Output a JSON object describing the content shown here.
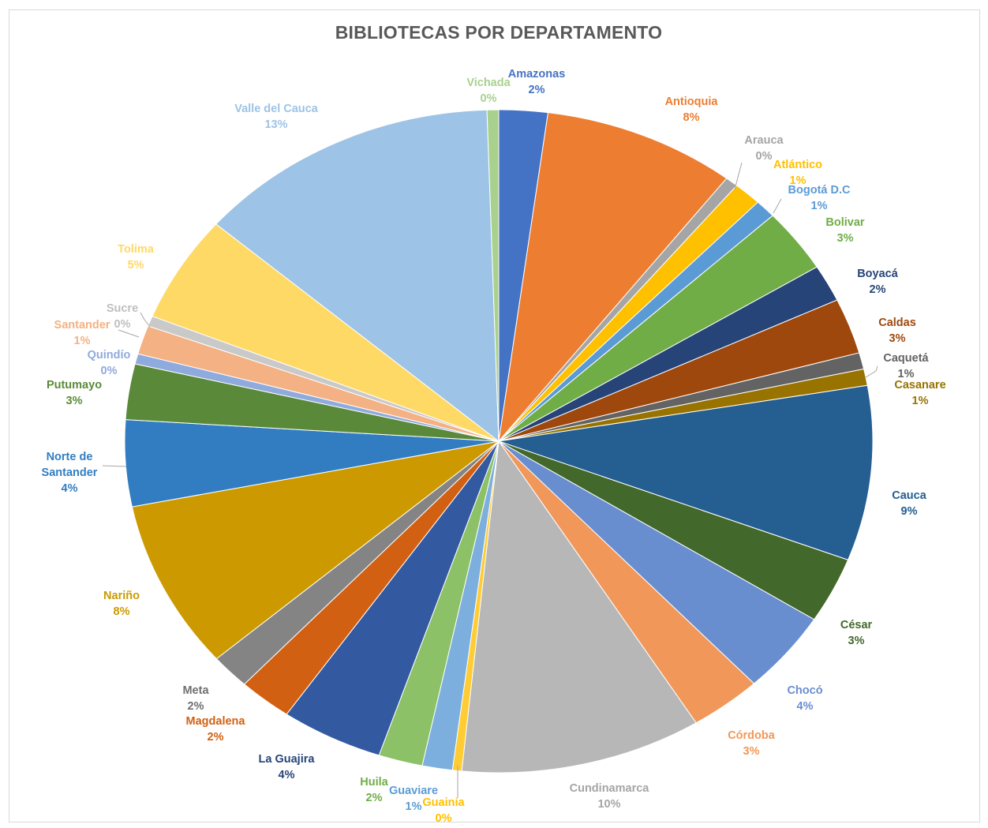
{
  "chart_data": {
    "type": "pie",
    "title": "BIBLIOTECAS POR DEPARTAMENTO",
    "slices": [
      {
        "name": "Amazonas",
        "label": "2%",
        "value": 2.1,
        "color": "#4472C4"
      },
      {
        "name": "Antioquia",
        "label": "8%",
        "value": 8.3,
        "color": "#ED7D31"
      },
      {
        "name": "Arauca",
        "label": "0%",
        "value": 0.55,
        "color": "#A5A5A5"
      },
      {
        "name": "Atlántico",
        "label": "1%",
        "value": 1.2,
        "color": "#FFC000"
      },
      {
        "name": "Bogotá D.C",
        "label": "1%",
        "value": 0.9,
        "color": "#5B9BD5"
      },
      {
        "name": "Bolivar",
        "label": "3%",
        "value": 3.1,
        "color": "#70AD47"
      },
      {
        "name": "Boyacá",
        "label": "2%",
        "value": 1.8,
        "color": "#264478"
      },
      {
        "name": "Caldas",
        "label": "3%",
        "value": 2.7,
        "color": "#9E480E"
      },
      {
        "name": "Caquetá",
        "label": "1%",
        "value": 0.8,
        "color": "#636363"
      },
      {
        "name": "Casanare",
        "label": "1%",
        "value": 0.8,
        "color": "#997300"
      },
      {
        "name": "Cauca",
        "label": "9%",
        "value": 8.5,
        "color": "#255E91"
      },
      {
        "name": "César",
        "label": "3%",
        "value": 3.2,
        "color": "#43682B"
      },
      {
        "name": "Chocó",
        "label": "4%",
        "value": 4.0,
        "color": "#698ED0"
      },
      {
        "name": "Córdoba",
        "label": "3%",
        "value": 3.1,
        "color": "#F1975A"
      },
      {
        "name": "Cundinamarca",
        "label": "10%",
        "value": 10.4,
        "color": "#B7B7B7"
      },
      {
        "name": "Guainía",
        "label": "0%",
        "value": 0.4,
        "color": "#FFCD33"
      },
      {
        "name": "Guaviare",
        "label": "1%",
        "value": 1.3,
        "color": "#7CAFDD"
      },
      {
        "name": "Huila",
        "label": "2%",
        "value": 1.9,
        "color": "#8CC168"
      },
      {
        "name": "La Guajira",
        "label": "4%",
        "value": 4.4,
        "color": "#335AA1"
      },
      {
        "name": "Magdalena",
        "label": "2%",
        "value": 2.3,
        "color": "#D26012"
      },
      {
        "name": "Meta",
        "label": "2%",
        "value": 1.7,
        "color": "#848484"
      },
      {
        "name": "Nariño",
        "label": "8%",
        "value": 8.2,
        "color": "#CC9A00"
      },
      {
        "name": "Norte de Santander",
        "label": "4%",
        "value": 4.2,
        "color": "#327DC2"
      },
      {
        "name": "Putumayo",
        "label": "3%",
        "value": 2.7,
        "color": "#5A8A39"
      },
      {
        "name": "Quindío",
        "label": "0%",
        "value": 0.5,
        "color": "#8FAADC"
      },
      {
        "name": "Santander",
        "label": "1%",
        "value": 1.4,
        "color": "#F4B183"
      },
      {
        "name": "Sucre",
        "label": "0%",
        "value": 0.5,
        "color": "#C9C9C9"
      },
      {
        "name": "Tolima",
        "label": "5%",
        "value": 5.2,
        "color": "#FFD966"
      },
      {
        "name": "Valle del Cauca",
        "label": "13%",
        "value": 13.1,
        "color": "#9DC3E6"
      },
      {
        "name": "Vichada",
        "label": "0%",
        "value": 0.5,
        "color": "#A9D18E"
      }
    ],
    "legend": "none"
  }
}
